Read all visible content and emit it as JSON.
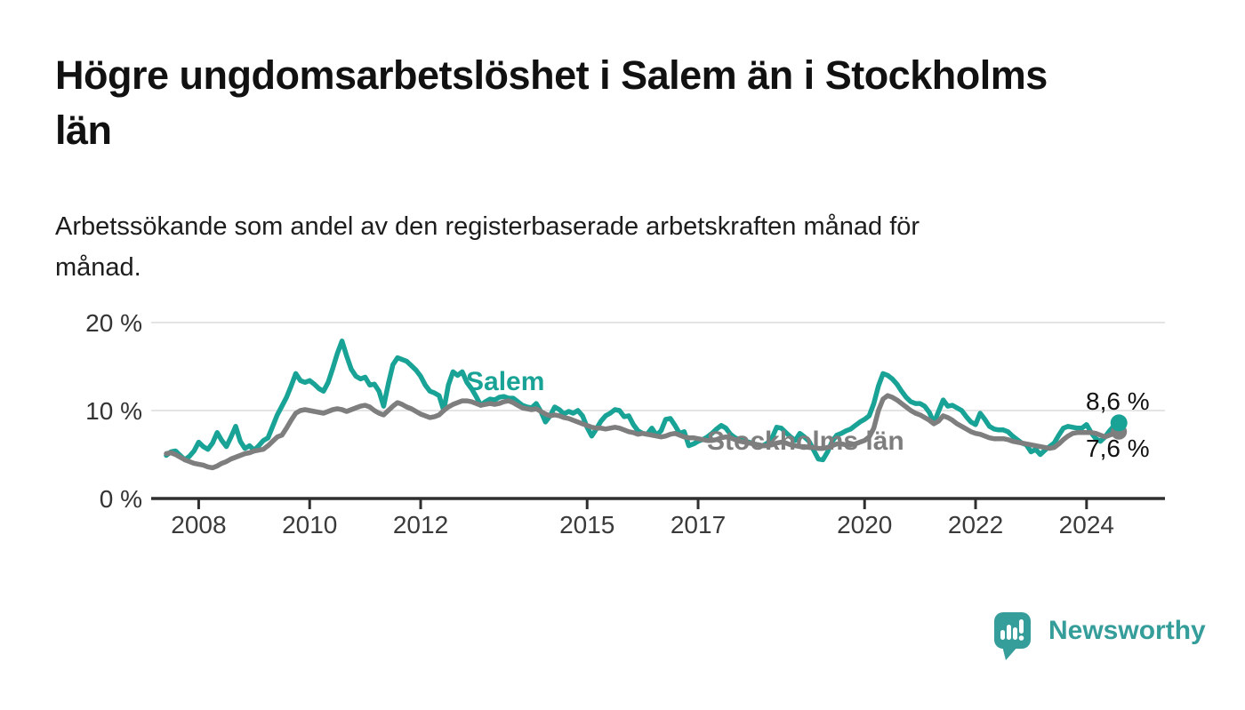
{
  "header": {
    "title": "Högre ungdomsarbetslöshet i Salem än i Stockholms län",
    "title_lines": [
      "Högre ungdomsarbetslöshet i Salem än i Stockholms",
      "län"
    ],
    "subtitle": "Arbetssökande som andel av den registerbaserade arbetskraften månad för månad.",
    "subtitle_lines": [
      "Arbetssökande som andel av den registerbaserade arbetskraften månad för",
      "månad."
    ]
  },
  "footer": {
    "brand": "Newsworthy",
    "logo_icon": "speech-bubble-bar-chart-icon",
    "brand_color": "#359D9A"
  },
  "colors": {
    "salem": "#18A396",
    "stockholm": "#7E7E7E",
    "gridline": "#DCDCDC",
    "axis": "#2F2F2F",
    "tick_text": "#3A3A3A",
    "background": "#FFFFFF"
  },
  "chart_data": {
    "type": "line",
    "unit": "%",
    "frequency": "monthly",
    "grid": "horizontal",
    "x_domain": [
      2007.144,
      2025.413
    ],
    "y_domain": [
      0,
      20
    ],
    "y_ticks": [
      {
        "value": 0,
        "label": "0 %"
      },
      {
        "value": 10,
        "label": "10 %"
      },
      {
        "value": 20,
        "label": "20 %"
      }
    ],
    "x_ticks": [
      {
        "value": 2008,
        "label": "2008"
      },
      {
        "value": 2010,
        "label": "2010"
      },
      {
        "value": 2012,
        "label": "2012"
      },
      {
        "value": 2015,
        "label": "2015"
      },
      {
        "value": 2017,
        "label": "2017"
      },
      {
        "value": 2020,
        "label": "2020"
      },
      {
        "value": 2022,
        "label": "2022"
      },
      {
        "value": 2024,
        "label": "2024"
      }
    ],
    "series": [
      {
        "name": "Salem",
        "color": "#18A396",
        "start": "2007-06",
        "end": "2024-08",
        "start_year": 2007.4167,
        "interval_years": 0.0833333,
        "end_value": 8.6,
        "end_label": "8,6 %",
        "values": [
          4.9,
          5.3,
          5.4,
          4.9,
          4.4,
          4.8,
          5.4,
          6.4,
          5.9,
          5.6,
          6.3,
          7.5,
          6.6,
          5.9,
          7.0,
          8.2,
          6.5,
          5.7,
          6.0,
          5.5,
          6.0,
          6.6,
          6.9,
          8.2,
          9.5,
          10.5,
          11.5,
          12.8,
          14.2,
          13.4,
          13.2,
          13.4,
          13.0,
          12.5,
          12.2,
          13.2,
          14.8,
          16.5,
          17.9,
          16.2,
          14.7,
          13.9,
          13.6,
          13.8,
          12.9,
          13.0,
          12.2,
          10.5,
          13.0,
          15.2,
          16.0,
          15.8,
          15.6,
          15.1,
          14.6,
          13.9,
          12.9,
          12.2,
          12.0,
          11.7,
          10.0,
          12.9,
          14.4,
          14.0,
          14.4,
          13.2,
          12.5,
          11.6,
          10.6,
          11.0,
          11.3,
          11.2,
          11.5,
          11.6,
          11.4,
          11.4,
          11.0,
          10.6,
          10.4,
          10.3,
          10.8,
          9.9,
          8.7,
          9.4,
          10.4,
          10.1,
          9.6,
          9.9,
          9.7,
          10.0,
          9.4,
          8.1,
          7.1,
          7.9,
          8.8,
          9.4,
          9.7,
          10.1,
          10.0,
          9.3,
          9.4,
          8.4,
          7.7,
          7.4,
          7.3,
          8.0,
          7.2,
          7.7,
          9.0,
          9.1,
          8.3,
          7.4,
          7.6,
          6.0,
          6.2,
          6.5,
          6.7,
          7.0,
          7.4,
          7.9,
          8.3,
          8.0,
          7.3,
          6.9,
          6.7,
          6.5,
          6.4,
          6.2,
          6.1,
          6.0,
          6.3,
          6.9,
          8.1,
          8.0,
          7.5,
          7.0,
          6.6,
          7.4,
          7.0,
          6.5,
          5.5,
          4.5,
          4.4,
          5.3,
          6.5,
          7.2,
          7.4,
          7.7,
          7.9,
          8.3,
          8.7,
          9.0,
          9.4,
          10.8,
          12.8,
          14.2,
          14.0,
          13.6,
          13.0,
          12.2,
          11.5,
          11.0,
          10.8,
          10.8,
          10.5,
          9.8,
          8.6,
          9.9,
          11.2,
          10.5,
          10.6,
          10.3,
          10.0,
          9.3,
          8.7,
          8.4,
          9.7,
          9.0,
          8.2,
          7.9,
          7.8,
          7.8,
          7.6,
          7.1,
          6.7,
          6.3,
          6.1,
          5.3,
          5.6,
          5.0,
          5.5,
          5.9,
          6.3,
          7.2,
          8.0,
          8.2,
          8.1,
          8.0,
          8.0,
          8.4,
          7.5,
          6.8,
          6.5,
          7.0,
          7.7,
          8.3,
          8.6
        ]
      },
      {
        "name": "Stockholms län",
        "color": "#7E7E7E",
        "start": "2007-06",
        "end": "2024-08",
        "start_year": 2007.4167,
        "interval_years": 0.0833333,
        "end_value": 7.6,
        "end_label": "7,6 %",
        "values": [
          5.1,
          5.2,
          5.0,
          4.7,
          4.4,
          4.2,
          4.0,
          3.9,
          3.8,
          3.6,
          3.5,
          3.7,
          4.0,
          4.2,
          4.5,
          4.7,
          4.9,
          5.1,
          5.2,
          5.4,
          5.5,
          5.6,
          6.0,
          6.5,
          7.0,
          7.2,
          8.0,
          8.9,
          9.7,
          10.0,
          10.1,
          10.0,
          9.9,
          9.8,
          9.7,
          9.9,
          10.1,
          10.2,
          10.1,
          9.9,
          10.1,
          10.3,
          10.5,
          10.6,
          10.4,
          10.0,
          9.7,
          9.5,
          10.0,
          10.5,
          10.9,
          10.7,
          10.4,
          10.2,
          9.9,
          9.6,
          9.4,
          9.2,
          9.3,
          9.5,
          10.0,
          10.4,
          10.7,
          10.9,
          11.1,
          11.1,
          11.0,
          10.8,
          10.6,
          10.7,
          10.8,
          10.7,
          10.8,
          11.0,
          11.1,
          10.9,
          10.6,
          10.3,
          10.2,
          10.1,
          10.2,
          9.9,
          9.6,
          9.4,
          9.5,
          9.4,
          9.2,
          9.1,
          8.9,
          8.7,
          8.5,
          8.3,
          8.1,
          8.0,
          8.0,
          7.9,
          8.0,
          8.1,
          8.0,
          7.8,
          7.6,
          7.5,
          7.3,
          7.4,
          7.3,
          7.2,
          7.1,
          7.0,
          7.1,
          7.3,
          7.4,
          7.2,
          7.0,
          6.9,
          6.9,
          6.8,
          6.7,
          6.6,
          6.6,
          6.7,
          6.9,
          7.0,
          6.9,
          6.7,
          6.5,
          6.4,
          6.3,
          6.2,
          6.1,
          6.0,
          6.0,
          6.1,
          6.3,
          6.4,
          6.3,
          6.1,
          6.0,
          5.9,
          5.9,
          5.8,
          5.8,
          5.7,
          5.7,
          5.8,
          6.0,
          6.2,
          6.2,
          6.1,
          6.1,
          6.2,
          6.4,
          6.6,
          7.0,
          8.0,
          10.0,
          11.3,
          11.7,
          11.5,
          11.2,
          10.8,
          10.4,
          10.0,
          9.7,
          9.5,
          9.2,
          8.9,
          8.5,
          8.8,
          9.4,
          9.2,
          8.9,
          8.5,
          8.2,
          7.9,
          7.6,
          7.4,
          7.3,
          7.1,
          6.9,
          6.8,
          6.8,
          6.8,
          6.7,
          6.5,
          6.4,
          6.3,
          6.2,
          6.1,
          6.0,
          5.9,
          5.8,
          5.7,
          5.8,
          6.2,
          6.7,
          7.1,
          7.4,
          7.5,
          7.5,
          7.5,
          7.5,
          7.4,
          7.2,
          7.0,
          7.2,
          7.4,
          7.6
        ]
      }
    ]
  }
}
